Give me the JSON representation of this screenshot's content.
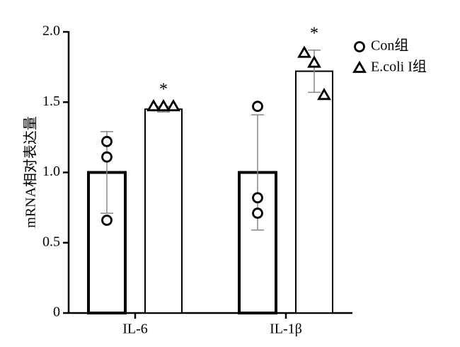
{
  "chart_data": {
    "type": "bar",
    "y_label": "mRNA相对表达量",
    "categories": [
      "IL-6",
      "IL-1β"
    ],
    "ylim": [
      0,
      2
    ],
    "yticks": [
      0,
      0.5,
      {
        "value": 1,
        "label": "1.0"
      },
      {
        "value": 1.5,
        "label": "1.5"
      },
      {
        "value": 2,
        "label": "2.0"
      }
    ],
    "series": [
      {
        "name": "Con组",
        "color": "#000000",
        "marker": "circle",
        "values": [
          1.0,
          1.0
        ],
        "errors": [
          0.29,
          0.41
        ],
        "points": [
          [
            1.22,
            1.11,
            0.66
          ],
          [
            1.47,
            0.82,
            0.71
          ]
        ]
      },
      {
        "name": "E.coli I组",
        "color": "#000000",
        "marker": "triangle",
        "values": [
          1.45,
          1.72
        ],
        "errors": [
          0.02,
          0.15
        ],
        "points": [
          [
            1.47,
            1.47,
            1.47
          ],
          [
            1.85,
            1.78,
            1.55
          ]
        ],
        "annotations": [
          "*",
          "*"
        ]
      }
    ]
  }
}
